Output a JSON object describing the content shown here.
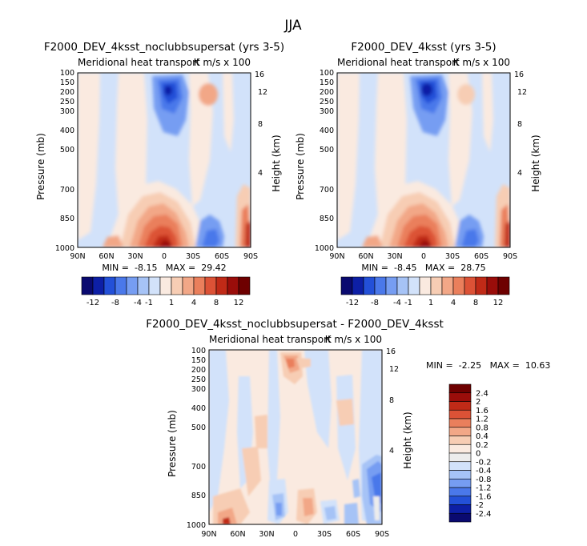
{
  "page_title": "JJA",
  "colorbar_top_labels": [
    "-12",
    "-8",
    "-4",
    "-1",
    "1",
    "4",
    "8",
    "12"
  ],
  "colorbar_top_colors": [
    "#0a0a70",
    "#0d1fa6",
    "#2350d8",
    "#4a78ea",
    "#769df2",
    "#a6c3f6",
    "#d2e2fa",
    "#faeae0",
    "#f7cdb4",
    "#f2a787",
    "#ea7f5c",
    "#dc5236",
    "#c02a17",
    "#9a0d0a",
    "#6e0000"
  ],
  "colorbar_diff_labels": [
    "2.4",
    "2",
    "1.6",
    "1.2",
    "0.8",
    "0.4",
    "0.2",
    "0",
    "-0.2",
    "-0.4",
    "-0.8",
    "-1.2",
    "-1.6",
    "-2",
    "-2.4"
  ],
  "colorbar_diff_colors": [
    "#6e0000",
    "#9a0d0a",
    "#c02a17",
    "#dc5236",
    "#ea7f5c",
    "#f2a787",
    "#f7cdb4",
    "#faeae0",
    "#ececec",
    "#d2e2fa",
    "#a6c3f6",
    "#769df2",
    "#4a78ea",
    "#2350d8",
    "#0d1fa6",
    "#0a0a70"
  ],
  "chart_data": [
    {
      "type": "heatmap",
      "title": "F2000_DEV_4ksst_noclubbsupersat (yrs 3-5)",
      "subtitle_left": "Meridional heat transport",
      "subtitle_right": "K m/s x 100",
      "xlabel": "",
      "ylabel": "Pressure (mb)",
      "y2label": "Height (km)",
      "x_ticks": [
        "90N",
        "60N",
        "30N",
        "0",
        "30S",
        "60S",
        "90S"
      ],
      "y_ticks": [
        "100",
        "150",
        "200",
        "250",
        "300",
        "400",
        "500",
        "700",
        "850",
        "1000"
      ],
      "y2_ticks": [
        "16",
        "12",
        "8",
        "4"
      ],
      "stats_text": "MIN =  -8.15   MAX =  29.42",
      "min": -8.15,
      "max": 29.42,
      "contour_levels": [
        -12,
        -10,
        -8,
        -6,
        -4,
        -2,
        -1,
        0,
        1,
        2,
        4,
        6,
        8,
        10,
        12
      ]
    },
    {
      "type": "heatmap",
      "title": "F2000_DEV_4ksst (yrs 3-5)",
      "subtitle_left": "Meridional heat transport",
      "subtitle_right": "K m/s x 100",
      "xlabel": "",
      "ylabel": "Pressure (mb)",
      "y2label": "Height (km)",
      "x_ticks": [
        "90N",
        "60N",
        "30N",
        "0",
        "30S",
        "60S",
        "90S"
      ],
      "y_ticks": [
        "100",
        "150",
        "200",
        "250",
        "300",
        "400",
        "500",
        "700",
        "850",
        "1000"
      ],
      "y2_ticks": [
        "16",
        "12",
        "8",
        "4"
      ],
      "stats_text": "MIN =  -8.45   MAX =  28.75",
      "min": -8.45,
      "max": 28.75,
      "contour_levels": [
        -12,
        -10,
        -8,
        -6,
        -4,
        -2,
        -1,
        0,
        1,
        2,
        4,
        6,
        8,
        10,
        12
      ]
    },
    {
      "type": "heatmap",
      "title": "F2000_DEV_4ksst_noclubbsupersat - F2000_DEV_4ksst",
      "subtitle_left": "Meridional heat transport",
      "subtitle_right": "K m/s x 100",
      "xlabel": "",
      "ylabel": "Pressure (mb)",
      "y2label": "Height (km)",
      "x_ticks": [
        "90N",
        "60N",
        "30N",
        "0",
        "30S",
        "60S",
        "90S"
      ],
      "y_ticks": [
        "100",
        "150",
        "200",
        "250",
        "300",
        "400",
        "500",
        "700",
        "850",
        "1000"
      ],
      "y2_ticks": [
        "16",
        "12",
        "8",
        "4"
      ],
      "stats_text": "MIN =  -2.25   MAX =  10.63",
      "min": -2.25,
      "max": 10.63,
      "contour_levels": [
        -2.4,
        -2,
        -1.6,
        -1.2,
        -0.8,
        -0.4,
        -0.2,
        0,
        0.2,
        0.4,
        0.8,
        1.2,
        1.6,
        2,
        2.4
      ]
    }
  ]
}
